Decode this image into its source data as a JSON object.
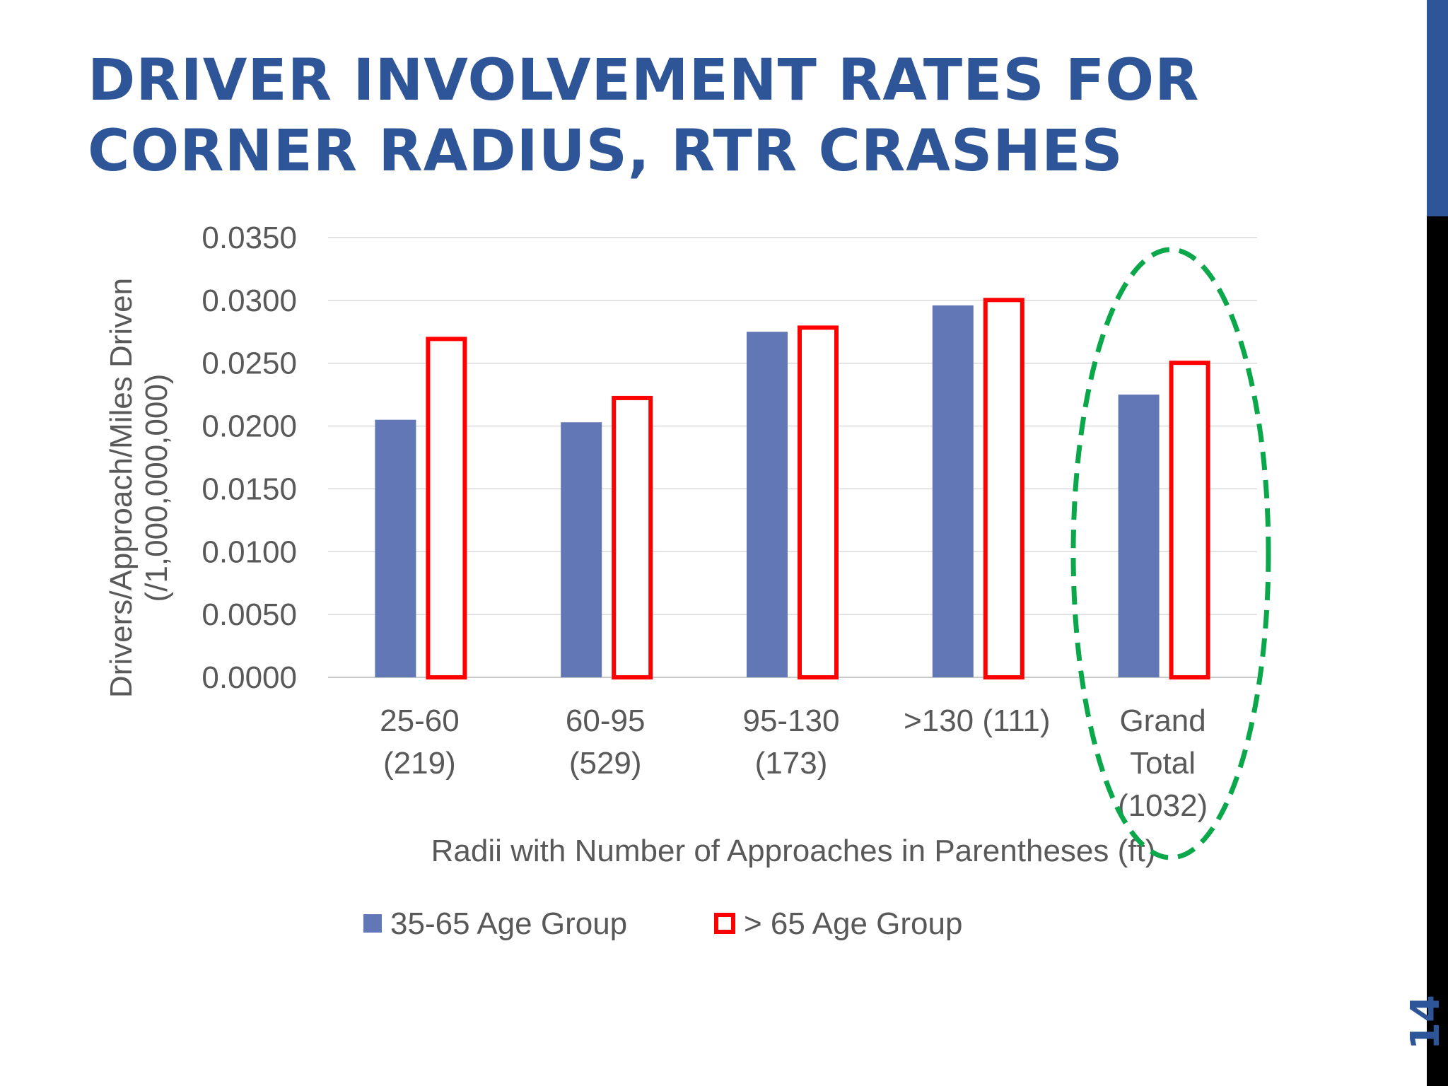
{
  "slide": {
    "title_lines": [
      "DRIVER INVOLVEMENT RATES FOR",
      "CORNER RADIUS, RTR CRASHES"
    ],
    "page_number": "14"
  },
  "colors": {
    "title": "#2e5597",
    "series_35_65": "#6277b5",
    "series_over_65": "#ff0000",
    "highlight": "#0aa84a"
  },
  "chart_data": {
    "type": "bar",
    "categories": [
      [
        "25-60",
        "(219)"
      ],
      [
        "60-95",
        "(529)"
      ],
      [
        "95-130",
        "(173)"
      ],
      [
        ">130 (111)"
      ],
      [
        "Grand",
        "Total",
        "(1032)"
      ]
    ],
    "series": [
      {
        "name": "35-65 Age Group",
        "values": [
          0.0205,
          0.0203,
          0.0275,
          0.0296,
          0.0225
        ],
        "style": "filled"
      },
      {
        "name": "> 65 Age Group",
        "values": [
          0.0271,
          0.0224,
          0.028,
          0.0302,
          0.0252
        ],
        "style": "outline"
      }
    ],
    "yticks": [
      "0.0000",
      "0.0050",
      "0.0100",
      "0.0150",
      "0.0200",
      "0.0250",
      "0.0300",
      "0.0350"
    ],
    "ylim": [
      0,
      0.035
    ],
    "ylabel_lines": [
      "Drivers/Approach/Miles Driven",
      "(/1,000,000,000)"
    ],
    "xlabel": "Radii with Number of Approaches in Parentheses (ft)",
    "grid": true,
    "legend_position": "bottom",
    "highlighted_category": "Grand Total (1032)"
  }
}
